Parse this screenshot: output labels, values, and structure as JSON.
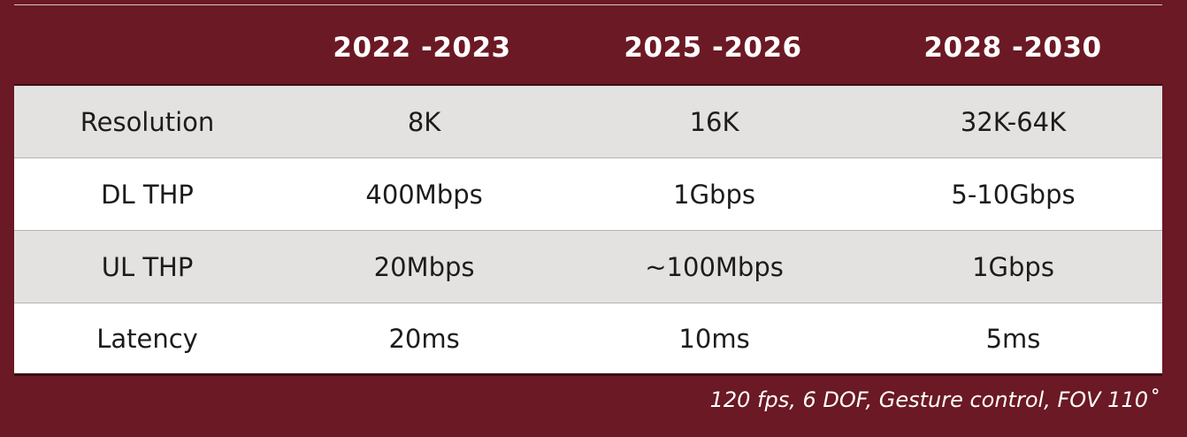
{
  "table": {
    "header": [
      "",
      "2022 -2023",
      "2025 -2026",
      "2028 -2030"
    ],
    "rows": [
      {
        "label": "Resolution",
        "values": [
          "8K",
          "16K",
          "32K-64K"
        ]
      },
      {
        "label": "DL THP",
        "values": [
          "400Mbps",
          "1Gbps",
          "5-10Gbps"
        ]
      },
      {
        "label": "UL THP",
        "values": [
          "20Mbps",
          "~100Mbps",
          "1Gbps"
        ]
      },
      {
        "label": "Latency",
        "values": [
          "20ms",
          "10ms",
          "5ms"
        ]
      }
    ]
  },
  "footnote": "120 fps, 6 DOF, Gesture control, FOV 110˚",
  "colors": {
    "background": "#6b1924",
    "row_shade": "#e4e2e1",
    "row_plain": "#ffffff",
    "text_dark": "#1c1c1c",
    "text_light": "#ffffff"
  }
}
